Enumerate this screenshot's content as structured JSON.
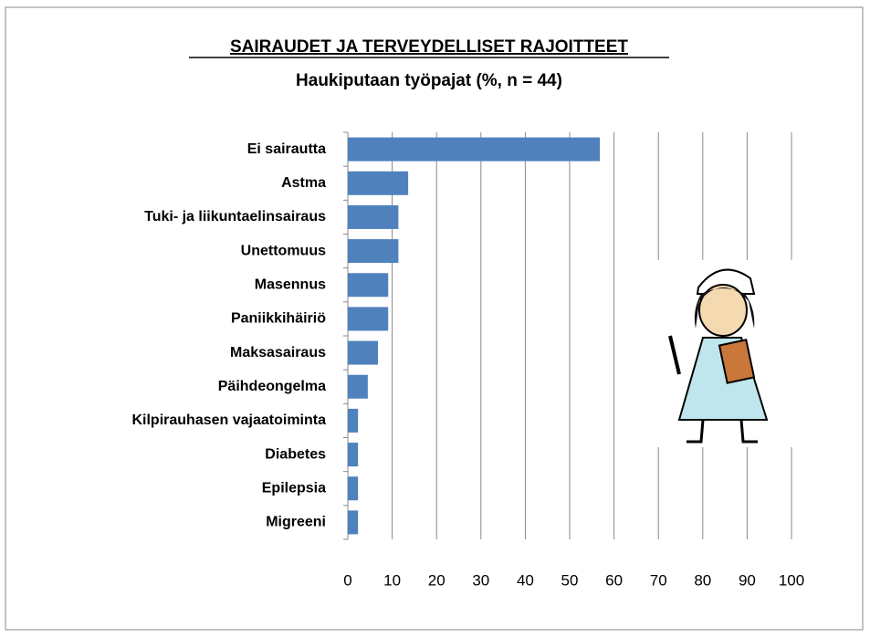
{
  "chart_data": {
    "type": "hbar",
    "title": "SAIRAUDET JA TERVEYDELLISET RAJOITTEET",
    "subtitle": "Haukiputaan työpajat  (%,  n = 44)",
    "categories": [
      "Ei sairautta",
      "Astma",
      "Tuki- ja liikuntaelinsairaus",
      "Unettomuus",
      "Masennus",
      "Paniikkihäiriö",
      "Maksasairaus",
      "Päihdeongelma",
      "Kilpirauhasen vajaatoiminta",
      "Diabetes",
      "Epilepsia",
      "Migreeni"
    ],
    "values": [
      56.8,
      13.6,
      11.4,
      11.4,
      9.1,
      9.1,
      6.8,
      4.5,
      2.3,
      2.3,
      2.3,
      2.3
    ],
    "color": "#4f81bd",
    "xlim": [
      0,
      100
    ],
    "xticks": [
      0,
      10,
      20,
      30,
      40,
      50,
      60,
      70,
      80,
      90,
      100
    ],
    "grid": true
  }
}
